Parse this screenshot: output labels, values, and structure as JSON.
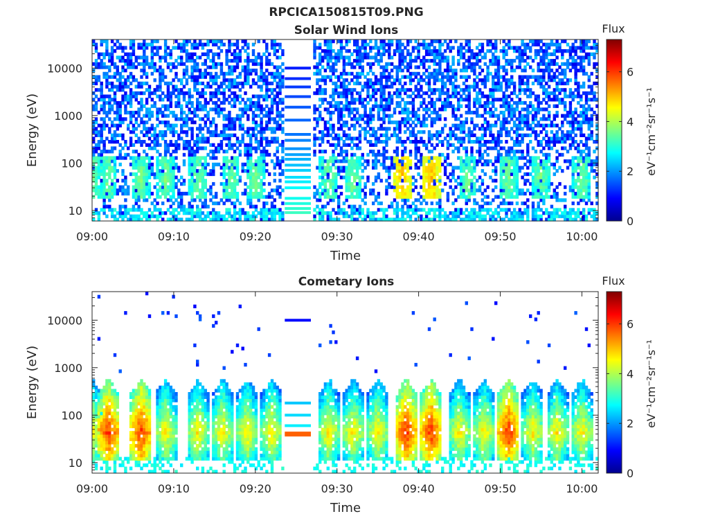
{
  "figure": {
    "filename": "RPCICA150815T09.PNG"
  },
  "chart_data": [
    {
      "type": "heatmap",
      "title": "Solar Wind Ions",
      "xlabel": "Time",
      "ylabel": "Energy (eV)",
      "x_ticks": [
        "09:00",
        "09:10",
        "09:20",
        "09:30",
        "09:40",
        "09:50",
        "10:00"
      ],
      "x_range": [
        "09:00",
        "10:02"
      ],
      "y_scale": "log",
      "y_ticks": [
        "10",
        "100",
        "1000",
        "10000"
      ],
      "y_range": [
        6,
        40000
      ],
      "data_gap": [
        "09:23.5",
        "09:27"
      ],
      "colorbar": {
        "title": "Flux",
        "label": "eV⁻¹cm⁻²sr⁻¹s⁻¹",
        "ticks": [
          "0",
          "2",
          "4",
          "6"
        ],
        "range": [
          0,
          7.3
        ],
        "colormap": "jet"
      },
      "low_energy_peaks_minutes": [
        0,
        2,
        6,
        9,
        13,
        17,
        20,
        29,
        32,
        38,
        41.5,
        46,
        51,
        55,
        60
      ],
      "strong_peaks_minutes": [
        38,
        41.5
      ],
      "peak_energy_eV": 50
    },
    {
      "type": "heatmap",
      "title": "Cometary Ions",
      "xlabel": "Time",
      "ylabel": "Energy (eV)",
      "x_ticks": [
        "09:00",
        "09:10",
        "09:20",
        "09:30",
        "09:40",
        "09:50",
        "10:00"
      ],
      "x_range": [
        "09:00",
        "10:02"
      ],
      "y_scale": "log",
      "y_ticks": [
        "10",
        "100",
        "1000",
        "10000"
      ],
      "y_range": [
        6,
        40000
      ],
      "data_gap": [
        "09:23.5",
        "09:27"
      ],
      "colorbar": {
        "title": "Flux",
        "label": "eV⁻¹cm⁻²sr⁻¹s⁻¹",
        "ticks": [
          "0",
          "2",
          "4",
          "6"
        ],
        "range": [
          0,
          7.3
        ],
        "colormap": "jet"
      },
      "burst_centers_minutes": [
        0,
        2,
        6,
        9,
        13,
        16,
        19,
        22,
        29,
        32,
        35,
        38.5,
        41.5,
        45,
        48,
        51,
        54,
        57,
        60
      ],
      "strong_bursts_minutes": [
        2,
        6,
        38.5,
        41.5,
        51
      ],
      "peak_energy_eV": 45,
      "max_energy_eV": 600
    }
  ]
}
